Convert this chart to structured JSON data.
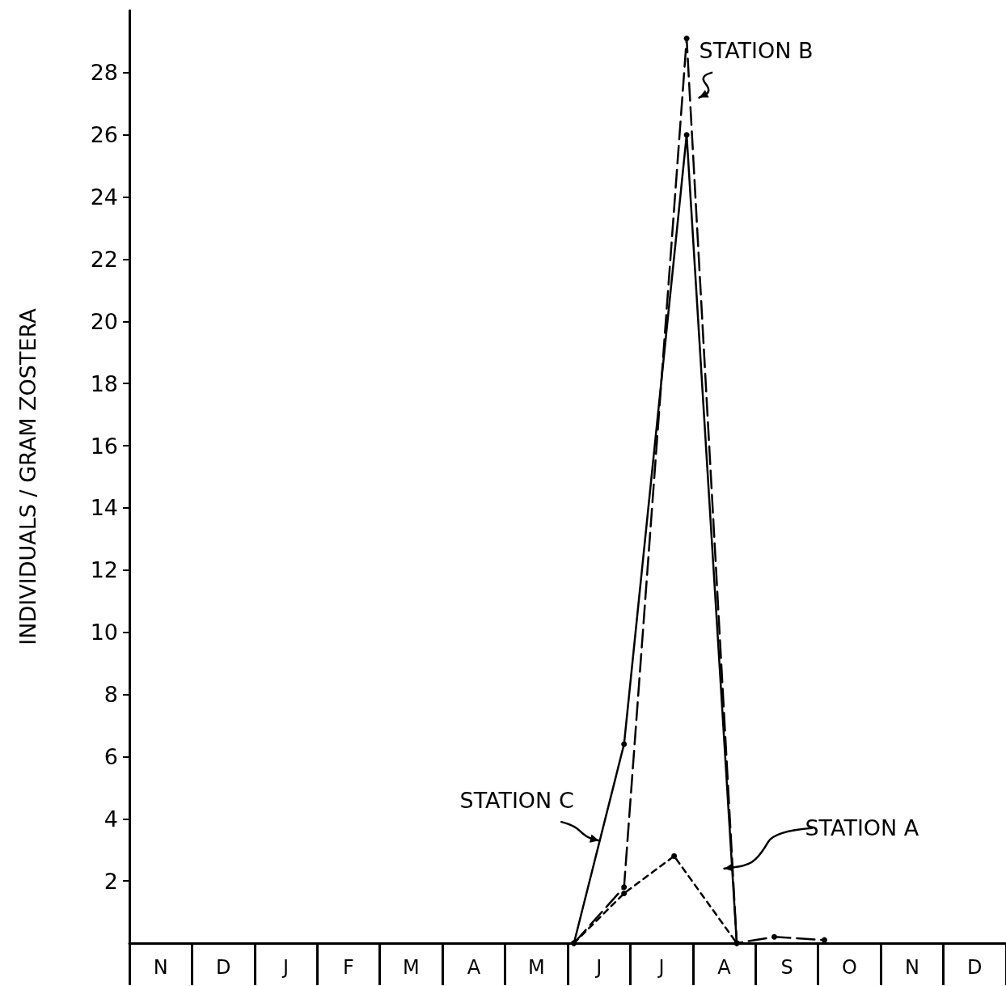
{
  "chart_data": {
    "type": "line",
    "ylabel": "INDIVIDUALS / GRAM ZOSTERA",
    "categories": [
      null,
      null,
      "N",
      null,
      null,
      null,
      null,
      "D",
      null,
      null,
      null,
      null,
      "J",
      null,
      null,
      null,
      null,
      "F",
      null,
      null,
      null,
      null,
      "M",
      null,
      null,
      null,
      null,
      "A",
      null,
      null,
      null,
      null,
      "M",
      null,
      null,
      null,
      null,
      "J",
      null,
      null,
      null,
      null,
      "J",
      null,
      null,
      null,
      null,
      "A",
      null,
      null,
      null,
      null,
      "S",
      null,
      null,
      null,
      null,
      "O",
      null,
      null,
      null,
      null,
      "N",
      null,
      null,
      null,
      null,
      "D",
      null,
      null
    ],
    "series": [
      {
        "name": "STATION C",
        "color": "#000000",
        "line_style": "solid",
        "values": [
          null,
          null,
          null,
          null,
          null,
          null,
          null,
          null,
          null,
          null,
          null,
          null,
          null,
          null,
          null,
          null,
          null,
          null,
          null,
          null,
          null,
          null,
          null,
          null,
          null,
          null,
          null,
          null,
          null,
          null,
          null,
          null,
          null,
          null,
          null,
          0,
          null,
          null,
          null,
          6.4,
          null,
          null,
          null,
          null,
          26.0,
          null,
          null,
          null,
          0,
          null,
          null,
          null,
          null,
          null,
          null,
          null,
          null,
          null,
          null,
          null,
          null,
          null,
          null,
          null,
          null,
          null,
          null,
          null,
          null,
          null
        ]
      },
      {
        "name": "STATION B",
        "color": "#000000",
        "line_style": "dashed",
        "values": [
          null,
          null,
          null,
          null,
          null,
          null,
          null,
          null,
          null,
          null,
          null,
          null,
          null,
          null,
          null,
          null,
          null,
          null,
          null,
          null,
          null,
          null,
          null,
          null,
          null,
          null,
          null,
          null,
          null,
          null,
          null,
          null,
          null,
          null,
          null,
          0,
          null,
          null,
          null,
          1.8,
          null,
          null,
          null,
          null,
          29.1,
          null,
          null,
          null,
          0,
          null,
          null,
          0.2,
          null,
          null,
          null,
          0.1,
          null,
          null,
          null,
          null,
          null,
          null,
          null,
          null,
          null,
          null,
          null,
          null,
          null,
          null
        ]
      },
      {
        "name": "STATION A",
        "color": "#000000",
        "line_style": "dotted",
        "values": [
          null,
          null,
          null,
          null,
          null,
          null,
          null,
          null,
          null,
          null,
          null,
          null,
          null,
          null,
          null,
          null,
          null,
          null,
          null,
          null,
          null,
          null,
          null,
          null,
          null,
          null,
          null,
          null,
          null,
          null,
          null,
          null,
          null,
          null,
          null,
          0,
          null,
          null,
          null,
          1.6,
          null,
          null,
          null,
          2.8,
          null,
          null,
          null,
          null,
          0,
          null,
          null,
          null,
          null,
          null,
          null,
          null,
          null,
          null,
          null,
          null,
          null,
          null,
          null,
          null,
          null,
          null,
          null,
          null,
          null,
          null
        ]
      }
    ],
    "marker": "circle",
    "ylim": [
      0,
      30
    ],
    "yticks": [
      2,
      4,
      6,
      8,
      10,
      12,
      14,
      16,
      18,
      20,
      22,
      24,
      26,
      28
    ],
    "grid": false,
    "legend": false
  }
}
